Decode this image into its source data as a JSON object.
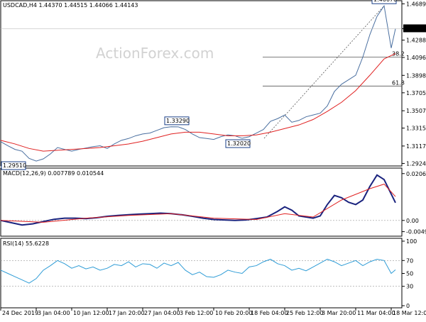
{
  "watermark": "ActionForex.com",
  "chart_data": [
    {
      "type": "line",
      "panel": "price",
      "title": "USDCAD,H4  1.44370 1.44515 1.44066 1.44143",
      "series": [
        {
          "name": "",
          "color": "#4a6fa0",
          "x": [
            0,
            10,
            20,
            30,
            40,
            50,
            60,
            70,
            80,
            90,
            100,
            110,
            120,
            130,
            140,
            150,
            160,
            170,
            180,
            190,
            200,
            210,
            220,
            230,
            240,
            250,
            260,
            270,
            280,
            290,
            300,
            310,
            320,
            330,
            340,
            350,
            360,
            370,
            380,
            390,
            400,
            410,
            420,
            430,
            440,
            450,
            460,
            470,
            480,
            490,
            500,
            510,
            520,
            530,
            540,
            550,
            556
          ],
          "values": [
            1.3165,
            1.312,
            1.308,
            1.306,
            1.298,
            1.2951,
            1.2975,
            1.303,
            1.31,
            1.308,
            1.306,
            1.308,
            1.3095,
            1.311,
            1.312,
            1.309,
            1.314,
            1.318,
            1.32,
            1.323,
            1.325,
            1.326,
            1.329,
            1.332,
            1.333,
            1.3329,
            1.33,
            1.325,
            1.321,
            1.32,
            1.319,
            1.322,
            1.324,
            1.323,
            1.3202,
            1.322,
            1.326,
            1.33,
            1.339,
            1.342,
            1.346,
            1.338,
            1.34,
            1.344,
            1.346,
            1.348,
            1.356,
            1.372,
            1.38,
            1.385,
            1.39,
            1.41,
            1.435,
            1.455,
            1.4667,
            1.42,
            1.4414
          ]
        },
        {
          "name": "",
          "color": "#e02020",
          "x": [
            0,
            20,
            40,
            60,
            80,
            100,
            120,
            140,
            160,
            180,
            200,
            220,
            240,
            260,
            280,
            300,
            320,
            340,
            360,
            380,
            400,
            420,
            440,
            460,
            480,
            500,
            520,
            540,
            556
          ],
          "values": [
            1.318,
            1.314,
            1.309,
            1.306,
            1.307,
            1.308,
            1.309,
            1.31,
            1.312,
            1.314,
            1.317,
            1.321,
            1.325,
            1.327,
            1.327,
            1.325,
            1.323,
            1.323,
            1.324,
            1.327,
            1.331,
            1.335,
            1.341,
            1.35,
            1.36,
            1.373,
            1.39,
            1.408,
            1.414
          ]
        }
      ],
      "ylim": [
        1.292,
        1.47
      ],
      "yticks": [
        "1.46890",
        "1.44143",
        "1.42880",
        "1.40960",
        "1.38980",
        "1.37055",
        "1.35070",
        "1.33150",
        "1.31170",
        "1.29245"
      ],
      "current_price": "1.44143",
      "price_labels": [
        {
          "text": "1.46670",
          "x": 540,
          "y": 1.4667
        },
        {
          "text": "1.33290",
          "x": 248,
          "y": 1.3329
        },
        {
          "text": "1.32020",
          "x": 334,
          "y": 1.3202
        },
        {
          "text": "1.29510",
          "x": 10,
          "y": 1.2951
        }
      ],
      "fib_levels": [
        {
          "label": "38.2",
          "value": 1.41
        },
        {
          "label": "61.8",
          "value": 1.378
        }
      ]
    },
    {
      "type": "line",
      "panel": "macd",
      "title": "MACD(12,26,9) 0.007789 0.010544",
      "series": [
        {
          "name": "",
          "color": "#1a237e",
          "x": [
            0,
            15,
            30,
            45,
            60,
            75,
            90,
            105,
            120,
            135,
            150,
            165,
            180,
            195,
            210,
            225,
            240,
            255,
            270,
            285,
            300,
            315,
            330,
            345,
            360,
            375,
            390,
            400,
            410,
            420,
            430,
            440,
            450,
            460,
            470,
            480,
            490,
            500,
            510,
            520,
            530,
            540,
            556
          ],
          "values": [
            0.0,
            -0.001,
            -0.002,
            -0.0015,
            -0.0005,
            0.0005,
            0.001,
            0.001,
            0.0008,
            0.0012,
            0.0018,
            0.0022,
            0.0025,
            0.0028,
            0.003,
            0.0032,
            0.003,
            0.0025,
            0.0018,
            0.001,
            0.0004,
            0.0002,
            0.0,
            0.0002,
            0.0008,
            0.0015,
            0.004,
            0.006,
            0.0045,
            0.002,
            0.0015,
            0.001,
            0.002,
            0.007,
            0.011,
            0.01,
            0.008,
            0.007,
            0.009,
            0.015,
            0.02,
            0.018,
            0.0078
          ]
        },
        {
          "name": "",
          "color": "#e02020",
          "x": [
            0,
            60,
            120,
            180,
            240,
            300,
            360,
            400,
            440,
            480,
            520,
            540,
            556
          ],
          "values": [
            0.0,
            -0.0008,
            0.001,
            0.0022,
            0.003,
            0.001,
            0.0004,
            0.003,
            0.0015,
            0.009,
            0.014,
            0.016,
            0.0105
          ]
        }
      ],
      "ylim": [
        -0.006,
        0.0215
      ],
      "yticks": [
        "0.020637",
        "0.00",
        "-0.004942"
      ]
    },
    {
      "type": "line",
      "panel": "rsi",
      "title": "RSI(14) 55.6228",
      "series": [
        {
          "name": "",
          "color": "#2e9cd6",
          "x": [
            0,
            10,
            20,
            30,
            40,
            50,
            60,
            70,
            80,
            90,
            100,
            110,
            120,
            130,
            140,
            150,
            160,
            170,
            180,
            190,
            200,
            210,
            220,
            230,
            240,
            250,
            260,
            270,
            280,
            290,
            300,
            310,
            320,
            330,
            340,
            350,
            360,
            370,
            380,
            390,
            400,
            410,
            420,
            430,
            440,
            450,
            460,
            470,
            480,
            490,
            500,
            510,
            520,
            530,
            540,
            550,
            556
          ],
          "values": [
            55,
            50,
            45,
            40,
            35,
            42,
            55,
            62,
            70,
            65,
            58,
            62,
            57,
            60,
            55,
            58,
            64,
            62,
            68,
            60,
            65,
            64,
            58,
            66,
            62,
            67,
            55,
            48,
            52,
            45,
            44,
            48,
            55,
            52,
            50,
            60,
            62,
            68,
            72,
            65,
            62,
            55,
            58,
            54,
            60,
            66,
            72,
            68,
            62,
            66,
            70,
            62,
            68,
            72,
            70,
            50,
            55.6
          ]
        }
      ],
      "ylim": [
        0,
        100
      ],
      "yticks": [
        "100",
        "70",
        "50",
        "30",
        "0"
      ]
    }
  ],
  "x_axis": {
    "labels": [
      "24 Dec 2019",
      "3 Jan 04:00",
      "10 Jan 12:00",
      "17 Jan 20:00",
      "27 Jan 04:00",
      "3 Feb 12:00",
      "10 Feb 20:00",
      "18 Feb 04:00",
      "25 Feb 12:00",
      "3 Mar 20:00",
      "11 Mar 04:00",
      "18 Mar 12:00"
    ],
    "positions": [
      0,
      50,
      100,
      150,
      200,
      250,
      300,
      350,
      400,
      450,
      500,
      550
    ]
  }
}
